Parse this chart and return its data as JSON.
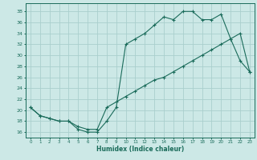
{
  "xlabel": "Humidex (Indice chaleur)",
  "background_color": "#cce8e6",
  "grid_color": "#aacfcd",
  "line_color": "#1a6b5a",
  "xlim": [
    -0.5,
    23.5
  ],
  "ylim": [
    15.0,
    39.5
  ],
  "xticks": [
    0,
    1,
    2,
    3,
    4,
    5,
    6,
    7,
    8,
    9,
    10,
    11,
    12,
    13,
    14,
    15,
    16,
    17,
    18,
    19,
    20,
    21,
    22,
    23
  ],
  "yticks": [
    16,
    18,
    20,
    22,
    24,
    26,
    28,
    30,
    32,
    34,
    36,
    38
  ],
  "line1_x": [
    0,
    1,
    2,
    3,
    4,
    5,
    6,
    7,
    8,
    9,
    10,
    11,
    12,
    13,
    14,
    15,
    16,
    17,
    18,
    19,
    20,
    21,
    22,
    23
  ],
  "line1_y": [
    20.5,
    19.0,
    18.5,
    18.0,
    18.0,
    16.5,
    16.0,
    16.0,
    18.0,
    20.5,
    32.0,
    33.0,
    34.0,
    35.5,
    37.0,
    36.5,
    38.0,
    38.0,
    36.5,
    36.5,
    37.5,
    33.0,
    29.0,
    27.0
  ],
  "line2_x": [
    0,
    1,
    2,
    3,
    4,
    5,
    6,
    7,
    8,
    9,
    10,
    11,
    12,
    13,
    14,
    15,
    16,
    17,
    18,
    19,
    20,
    21,
    22,
    23
  ],
  "line2_y": [
    20.5,
    19.0,
    18.5,
    18.0,
    18.0,
    17.0,
    16.5,
    16.5,
    20.5,
    21.5,
    22.5,
    23.5,
    24.5,
    25.5,
    26.0,
    27.0,
    28.0,
    29.0,
    30.0,
    31.0,
    32.0,
    33.0,
    34.0,
    27.0
  ]
}
